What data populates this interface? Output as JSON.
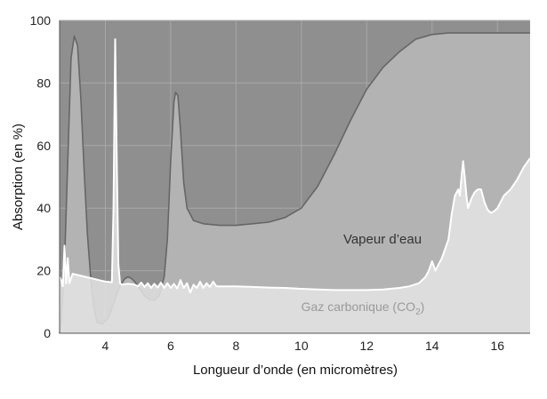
{
  "chart_data": {
    "type": "area",
    "title": "",
    "xlabel": "Longueur d’onde (en micromètres)",
    "ylabel": "Absorption (en %)",
    "xlim": [
      2.6,
      17
    ],
    "ylim": [
      0,
      100
    ],
    "x_ticks": [
      4,
      6,
      8,
      10,
      12,
      14,
      16
    ],
    "y_ticks": [
      0,
      20,
      40,
      60,
      80,
      100
    ],
    "grid": true,
    "colors": {
      "background": "#8f8f8f",
      "water_fill": "#b3b3b3",
      "water_line": "#666666",
      "co2_fill": "#e4e4e4",
      "co2_line": "#ffffff",
      "grid": "#a8a8a8"
    },
    "annotations": {
      "water": "Vapeur d’eau",
      "co2_prefix": "Gaz carbonique (CO",
      "co2_sub": "2",
      "co2_suffix": ")"
    },
    "series": [
      {
        "id": "water",
        "points": [
          [
            2.6,
            0
          ],
          [
            2.65,
            4
          ],
          [
            2.75,
            22
          ],
          [
            2.85,
            55
          ],
          [
            2.95,
            88
          ],
          [
            3.05,
            95
          ],
          [
            3.15,
            92
          ],
          [
            3.25,
            75
          ],
          [
            3.35,
            52
          ],
          [
            3.45,
            32
          ],
          [
            3.55,
            18
          ],
          [
            3.65,
            8
          ],
          [
            3.75,
            3.5
          ],
          [
            3.9,
            3
          ],
          [
            4.1,
            5
          ],
          [
            4.2,
            8
          ],
          [
            4.3,
            11
          ],
          [
            4.4,
            14
          ],
          [
            4.5,
            16
          ],
          [
            4.6,
            17.5
          ],
          [
            4.7,
            18
          ],
          [
            4.8,
            17.5
          ],
          [
            4.9,
            16.5
          ],
          [
            5.0,
            15
          ],
          [
            5.1,
            13.5
          ],
          [
            5.2,
            12
          ],
          [
            5.35,
            10.8
          ],
          [
            5.5,
            10.5
          ],
          [
            5.65,
            12
          ],
          [
            5.8,
            18
          ],
          [
            5.9,
            30
          ],
          [
            6.0,
            55
          ],
          [
            6.1,
            74
          ],
          [
            6.15,
            77
          ],
          [
            6.22,
            76
          ],
          [
            6.3,
            65
          ],
          [
            6.4,
            48
          ],
          [
            6.5,
            40
          ],
          [
            6.7,
            36
          ],
          [
            7.0,
            35
          ],
          [
            7.5,
            34.5
          ],
          [
            8.0,
            34.5
          ],
          [
            8.5,
            35
          ],
          [
            9.0,
            35.5
          ],
          [
            9.5,
            37
          ],
          [
            10.0,
            40
          ],
          [
            10.5,
            47
          ],
          [
            11.0,
            57
          ],
          [
            11.5,
            68
          ],
          [
            12.0,
            78
          ],
          [
            12.5,
            85
          ],
          [
            13.0,
            90
          ],
          [
            13.5,
            94
          ],
          [
            14.0,
            95.5
          ],
          [
            14.5,
            96
          ],
          [
            15.0,
            96
          ],
          [
            16.0,
            96
          ],
          [
            17.0,
            96
          ]
        ]
      },
      {
        "id": "co2",
        "points": [
          [
            2.6,
            18
          ],
          [
            2.65,
            17
          ],
          [
            2.7,
            15
          ],
          [
            2.75,
            28
          ],
          [
            2.8,
            16
          ],
          [
            2.85,
            24
          ],
          [
            2.9,
            16
          ],
          [
            3.0,
            19
          ],
          [
            3.2,
            18.5
          ],
          [
            3.4,
            18
          ],
          [
            3.6,
            17.5
          ],
          [
            3.8,
            17
          ],
          [
            4.0,
            16.5
          ],
          [
            4.2,
            16.3
          ],
          [
            4.25,
            40
          ],
          [
            4.3,
            94
          ],
          [
            4.35,
            55
          ],
          [
            4.4,
            22
          ],
          [
            4.45,
            16
          ],
          [
            4.5,
            15.5
          ],
          [
            4.7,
            15.8
          ],
          [
            4.9,
            15.5
          ],
          [
            5.0,
            15
          ],
          [
            5.1,
            16.2
          ],
          [
            5.2,
            14.8
          ],
          [
            5.3,
            16
          ],
          [
            5.4,
            14.5
          ],
          [
            5.5,
            15.8
          ],
          [
            5.6,
            14.6
          ],
          [
            5.7,
            16.2
          ],
          [
            5.8,
            14.5
          ],
          [
            5.9,
            16
          ],
          [
            6.0,
            14.5
          ],
          [
            6.1,
            15.8
          ],
          [
            6.2,
            14.3
          ],
          [
            6.3,
            17
          ],
          [
            6.4,
            14.5
          ],
          [
            6.5,
            16
          ],
          [
            6.6,
            13
          ],
          [
            6.7,
            15.5
          ],
          [
            6.8,
            14.5
          ],
          [
            6.9,
            16.5
          ],
          [
            7.0,
            14.5
          ],
          [
            7.1,
            16
          ],
          [
            7.2,
            14.8
          ],
          [
            7.3,
            16.5
          ],
          [
            7.4,
            15
          ],
          [
            7.6,
            15
          ],
          [
            8.0,
            15
          ],
          [
            8.5,
            14.8
          ],
          [
            9.0,
            14.6
          ],
          [
            9.5,
            14.5
          ],
          [
            10.0,
            14.2
          ],
          [
            10.5,
            14
          ],
          [
            11.0,
            13.8
          ],
          [
            11.5,
            13.8
          ],
          [
            12.0,
            13.8
          ],
          [
            12.5,
            14
          ],
          [
            13.0,
            14.5
          ],
          [
            13.3,
            15
          ],
          [
            13.6,
            16
          ],
          [
            13.8,
            18
          ],
          [
            13.9,
            20
          ],
          [
            14.0,
            23
          ],
          [
            14.1,
            20
          ],
          [
            14.3,
            24
          ],
          [
            14.5,
            30
          ],
          [
            14.6,
            38
          ],
          [
            14.7,
            44
          ],
          [
            14.8,
            46
          ],
          [
            14.85,
            44
          ],
          [
            14.9,
            50
          ],
          [
            14.95,
            55
          ],
          [
            15.0,
            50
          ],
          [
            15.05,
            44
          ],
          [
            15.1,
            40
          ],
          [
            15.2,
            43
          ],
          [
            15.3,
            45
          ],
          [
            15.4,
            46
          ],
          [
            15.5,
            46
          ],
          [
            15.6,
            42
          ],
          [
            15.7,
            39.5
          ],
          [
            15.8,
            38.5
          ],
          [
            15.9,
            39
          ],
          [
            16.0,
            40
          ],
          [
            16.1,
            42
          ],
          [
            16.2,
            44
          ],
          [
            16.4,
            46
          ],
          [
            16.6,
            49
          ],
          [
            16.8,
            53
          ],
          [
            17.0,
            56
          ]
        ]
      }
    ]
  }
}
